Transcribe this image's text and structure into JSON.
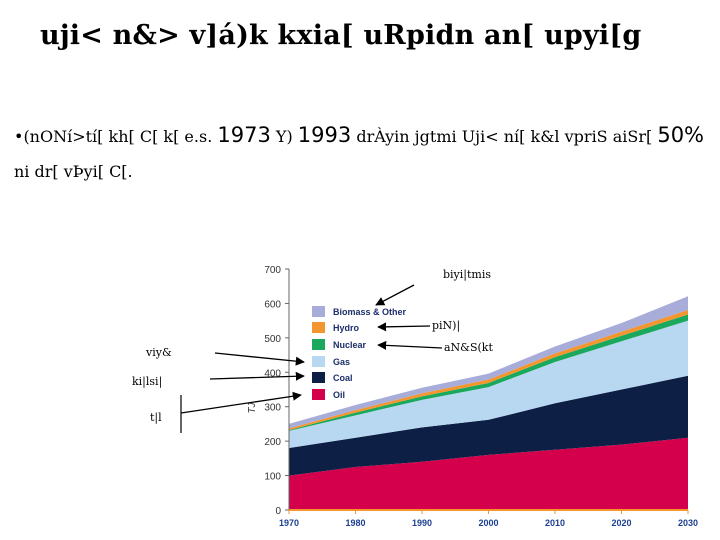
{
  "title": "uji< n&> v]á)k kxia[ uRpidn an[ upyi[g",
  "bullet": {
    "marker": "•",
    "part1": "(nONí>tí[ kh[ C[ k[ e.s. ",
    "year1": "1973",
    "part2": " Y) ",
    "year2": "1993",
    "part3": " drÀyin jgtmi Uji< ní[ k&l vpriS aiSr[ ",
    "percent": "50%",
    "part4": " ni dr[ vÞyi[ C[."
  },
  "callouts": {
    "biomass": "biyi|tmis",
    "hydro": "piN)|",
    "nuclear": "aN&S(kt",
    "gas": "viy&",
    "coal": "ki|lsi|",
    "oil": "t|l"
  },
  "chart_data": {
    "type": "area",
    "stacked": true,
    "x": [
      1970,
      1980,
      1990,
      2000,
      2010,
      2020,
      2030
    ],
    "xlim": [
      1970,
      2030
    ],
    "ylim": [
      0,
      700
    ],
    "yticks": [
      0,
      100,
      200,
      300,
      400,
      500,
      600,
      700
    ],
    "ylabel": "TJ",
    "xlabel": "",
    "legend_position": "top-left",
    "series": [
      {
        "name": "Oil",
        "color": "#d4004b",
        "values": [
          100,
          125,
          140,
          160,
          175,
          190,
          210
        ]
      },
      {
        "name": "Coal",
        "color": "#0e1f45",
        "values": [
          80,
          85,
          100,
          102,
          135,
          160,
          180
        ]
      },
      {
        "name": "Gas",
        "color": "#b7d8f0",
        "values": [
          50,
          65,
          80,
          95,
          120,
          140,
          160
        ]
      },
      {
        "name": "Nuclear",
        "color": "#1aa85c",
        "values": [
          2,
          8,
          10,
          12,
          14,
          16,
          18
        ]
      },
      {
        "name": "Hydro",
        "color": "#f3962f",
        "values": [
          5,
          7,
          9,
          10,
          11,
          12,
          13
        ]
      },
      {
        "name": "Biomass & Other",
        "color": "#a7acd9",
        "values": [
          13,
          15,
          16,
          17,
          20,
          25,
          40
        ]
      }
    ]
  }
}
